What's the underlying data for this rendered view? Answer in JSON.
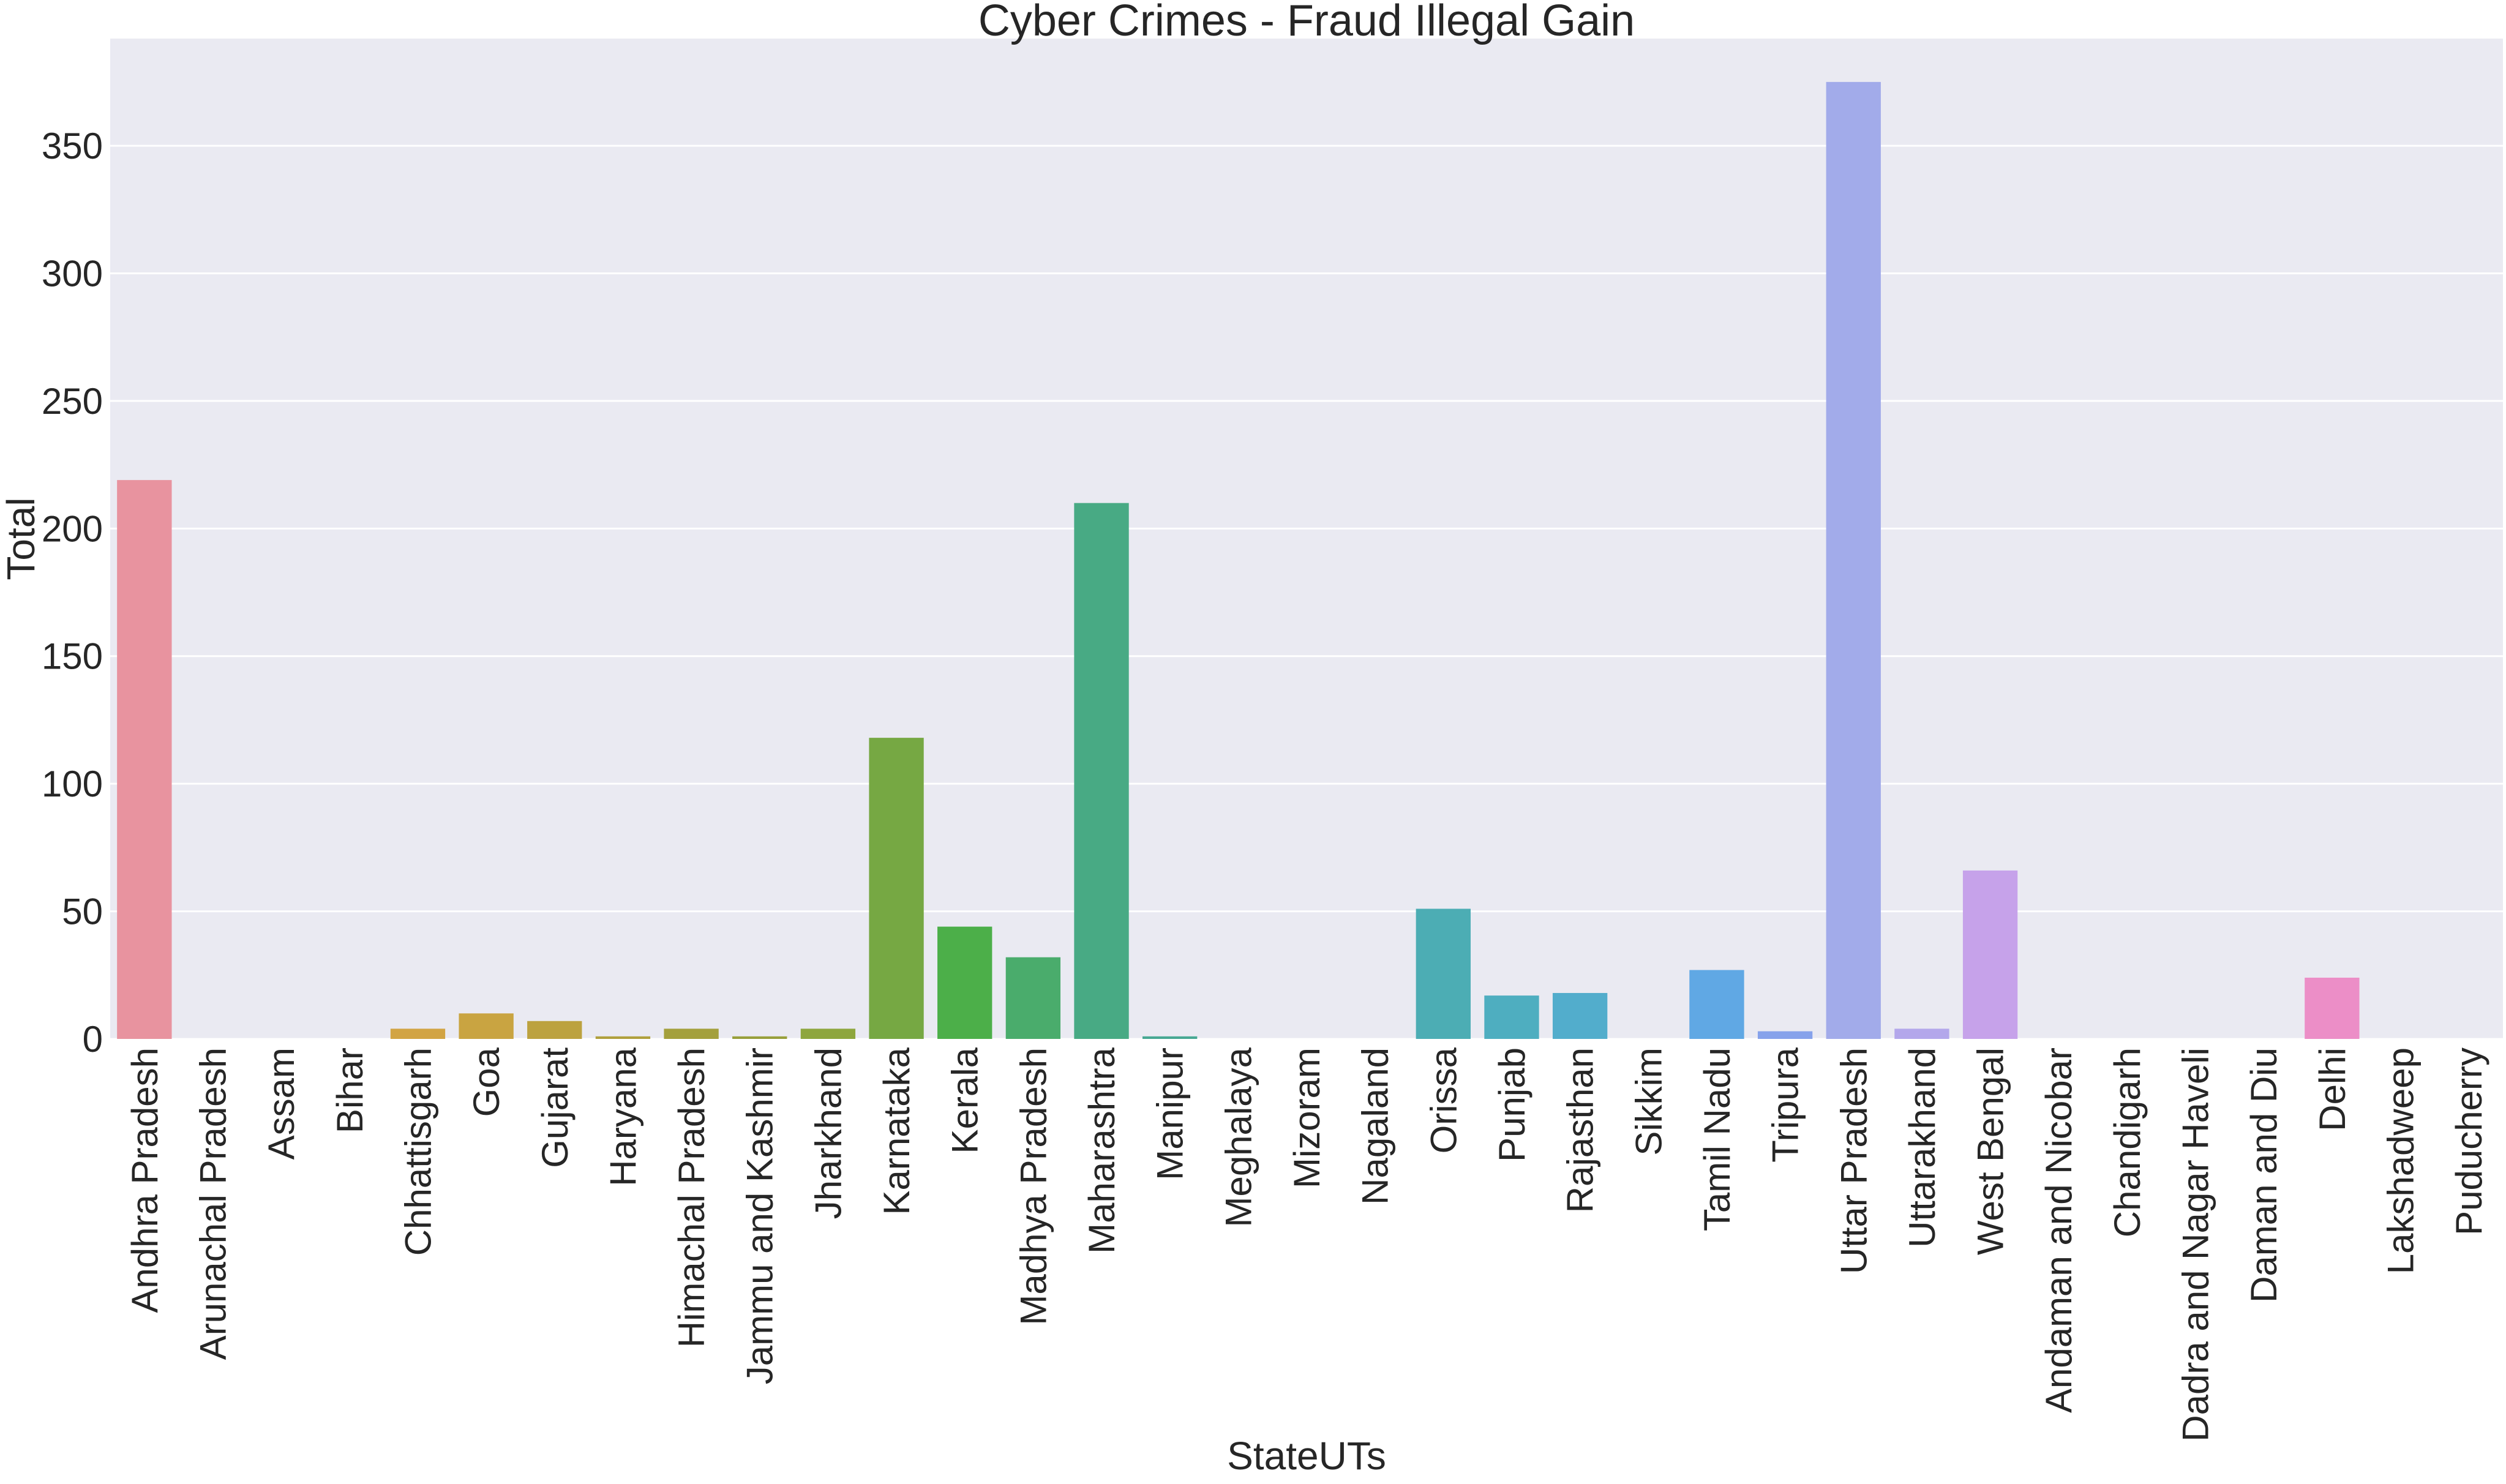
{
  "chart_data": {
    "type": "bar",
    "title": "Cyber Crimes - Fraud Illegal Gain",
    "xlabel": "StateUTs",
    "ylabel": "Total",
    "ylim": [
      0,
      392
    ],
    "yticks": [
      0,
      50,
      100,
      150,
      200,
      250,
      300,
      350
    ],
    "grid": true,
    "categories": [
      "Andhra Pradesh",
      "Arunachal Pradesh",
      "Assam",
      "Bihar",
      "Chhattisgarh",
      "Goa",
      "Gujarat",
      "Haryana",
      "Himachal Pradesh",
      "Jammu and Kashmir",
      "Jharkhand",
      "Karnataka",
      "Kerala",
      "Madhya Pradesh",
      "Maharashtra",
      "Manipur",
      "Meghalaya",
      "Mizoram",
      "Nagaland",
      "Orissa",
      "Punjab",
      "Rajasthan",
      "Sikkim",
      "Tamil Nadu",
      "Tripura",
      "Uttar Pradesh",
      "Uttarakhand",
      "West Bengal",
      "Andaman and Nicobar",
      "Chandigarh",
      "Dadra and Nagar Haveli",
      "Daman and Diu",
      "Delhi",
      "Lakshadweep",
      "Puducherry"
    ],
    "values": [
      219,
      0,
      0,
      0,
      4,
      10,
      7,
      1,
      4,
      1,
      4,
      118,
      44,
      32,
      210,
      1,
      0,
      0,
      0,
      51,
      17,
      18,
      0,
      27,
      3,
      375,
      4,
      66,
      0,
      0,
      0,
      0,
      24,
      0,
      0
    ],
    "colors": [
      "#e8939f",
      "#e5966d",
      "#df9a5c",
      "#d99f4d",
      "#d2a443",
      "#c9a441",
      "#bca23f",
      "#b0a03d",
      "#a4a03c",
      "#989f3b",
      "#8ea63d",
      "#76a843",
      "#4caf49",
      "#4aac6c",
      "#48aa84",
      "#47a893",
      "#47a89f",
      "#48a8aa",
      "#4aa9b3",
      "#4cadb4",
      "#4eaec0",
      "#52adcc",
      "#58aadc",
      "#60a8e4",
      "#86a2eb",
      "#a2abea",
      "#b3a7eb",
      "#c6a2ea",
      "#d69eea",
      "#e39be7",
      "#ea98e0",
      "#ec95d6",
      "#ec8ec7",
      "#eb8eb7",
      "#ea90a8"
    ],
    "background": "#eaeaf2",
    "gridline_color": "#ffffff"
  }
}
